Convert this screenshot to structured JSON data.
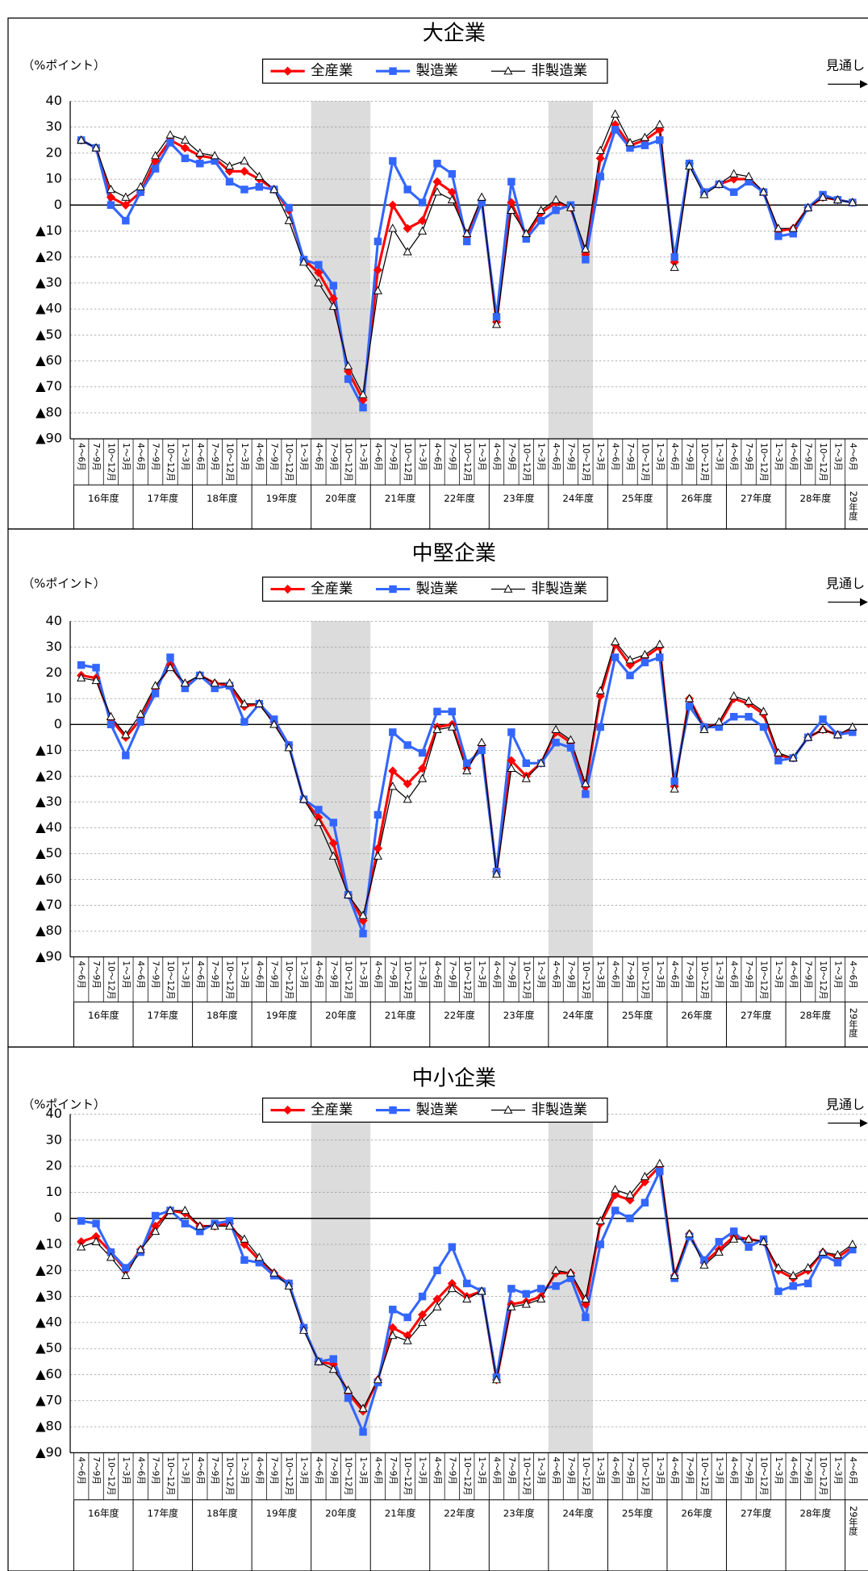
{
  "chart_data": [
    {
      "type": "line",
      "title": "大企業",
      "y_label": "（%ポイント）",
      "forecast_label": "見通し",
      "legend": "top center",
      "grid": true,
      "shaded_ranges": [
        [
          16,
          19
        ],
        [
          32,
          34
        ]
      ],
      "categories": [
        "4～6月",
        "7～9月",
        "10～12月",
        "1～3月",
        "4～6月",
        "7～9月",
        "10～12月",
        "1～3月",
        "4～6月",
        "7～9月",
        "10～12月",
        "1～3月",
        "4～6月",
        "7～9月",
        "10～12月",
        "1～3月",
        "4～6月",
        "7～9月",
        "10～12月",
        "1～3月",
        "4～6月",
        "7～9月",
        "10～12月",
        "1～3月",
        "4～6月",
        "7～9月",
        "10～12月",
        "1～3月",
        "4～6月",
        "7～9月",
        "10～12月",
        "1～3月",
        "4～6月",
        "7～9月",
        "10～12月",
        "1～3月",
        "4～6月",
        "7～9月",
        "10～12月",
        "1～3月",
        "4～6月",
        "7～9月",
        "10～12月",
        "1～3月",
        "4～6月",
        "7～9月",
        "10～12月",
        "1～3月",
        "4～6月",
        "7～9月",
        "10～12月",
        "1～3月",
        "4～6月"
      ],
      "year_groups": [
        "16年度",
        "17年度",
        "18年度",
        "19年度",
        "20年度",
        "21年度",
        "22年度",
        "23年度",
        "24年度",
        "25年度",
        "26年度",
        "27年度",
        "28年度",
        "29年度"
      ],
      "ylim": [
        -90,
        40
      ],
      "yticks": [
        40,
        30,
        20,
        10,
        0,
        {
          "value": -10,
          "label": "▲10"
        },
        {
          "value": -20,
          "label": "▲20"
        },
        {
          "value": -30,
          "label": "▲30"
        },
        {
          "value": -40,
          "label": "▲40"
        },
        {
          "value": -50,
          "label": "▲50"
        },
        {
          "value": -60,
          "label": "▲60"
        },
        {
          "value": -70,
          "label": "▲70"
        },
        {
          "value": -80,
          "label": "▲80"
        },
        {
          "value": -90,
          "label": "▲90"
        }
      ],
      "series": [
        {
          "name": "全産業",
          "color": "#ff0000",
          "marker": "diamond",
          "values": [
            25,
            22,
            3,
            0,
            5,
            17,
            25,
            22,
            19,
            18,
            13,
            13,
            10,
            6,
            -2,
            -21,
            -26,
            -36,
            -64,
            -75,
            -25,
            0,
            -9,
            -6,
            9,
            5,
            -12,
            2,
            -45,
            1,
            -12,
            -3,
            1,
            -1,
            -19,
            18,
            31,
            23,
            25,
            29,
            -22,
            16,
            5,
            8,
            10,
            10,
            5,
            -10,
            -9,
            -1,
            3,
            2,
            1
          ]
        },
        {
          "name": "製造業",
          "color": "#3366ff",
          "marker": "square",
          "values": [
            25,
            22,
            0,
            -6,
            5,
            14,
            24,
            18,
            16,
            17,
            9,
            6,
            7,
            6,
            -1,
            -21,
            -23,
            -31,
            -67,
            -78,
            -14,
            17,
            6,
            1,
            16,
            12,
            -14,
            1,
            -43,
            9,
            -13,
            -6,
            -2,
            0,
            -21,
            11,
            29,
            22,
            23,
            25,
            -20,
            16,
            5,
            8,
            5,
            9,
            5,
            -12,
            -11,
            -1,
            4,
            2,
            1
          ]
        },
        {
          "name": "非製造業",
          "color": "#000000",
          "marker": "triangle",
          "values": [
            25,
            22,
            6,
            3,
            7,
            19,
            27,
            25,
            20,
            19,
            15,
            17,
            11,
            6,
            -6,
            -22,
            -30,
            -39,
            -62,
            -73,
            -33,
            -9,
            -18,
            -10,
            5,
            2,
            -11,
            3,
            -46,
            -2,
            -11,
            -2,
            2,
            -1,
            -17,
            21,
            35,
            24,
            26,
            31,
            -24,
            15,
            4,
            8,
            12,
            11,
            5,
            -9,
            -9,
            -1,
            3,
            2,
            1
          ]
        }
      ]
    },
    {
      "type": "line",
      "title": "中堅企業",
      "y_label": "（%ポイント）",
      "forecast_label": "見通し",
      "legend": "top center",
      "grid": true,
      "shaded_ranges": [
        [
          16,
          19
        ],
        [
          32,
          34
        ]
      ],
      "categories": [
        "4～6月",
        "7～9月",
        "10～12月",
        "1～3月",
        "4～6月",
        "7～9月",
        "10～12月",
        "1～3月",
        "4～6月",
        "7～9月",
        "10～12月",
        "1～3月",
        "4～6月",
        "7～9月",
        "10～12月",
        "1～3月",
        "4～6月",
        "7～9月",
        "10～12月",
        "1～3月",
        "4～6月",
        "7～9月",
        "10～12月",
        "1～3月",
        "4～6月",
        "7～9月",
        "10～12月",
        "1～3月",
        "4～6月",
        "7～9月",
        "10～12月",
        "1～3月",
        "4～6月",
        "7～9月",
        "10～12月",
        "1～3月",
        "4～6月",
        "7～9月",
        "10～12月",
        "1～3月",
        "4～6月",
        "7～9月",
        "10～12月",
        "1～3月",
        "4～6月",
        "7～9月",
        "10～12月",
        "1～3月",
        "4～6月",
        "7～9月",
        "10～12月",
        "1～3月",
        "4～6月"
      ],
      "year_groups": [
        "16年度",
        "17年度",
        "18年度",
        "19年度",
        "20年度",
        "21年度",
        "22年度",
        "23年度",
        "24年度",
        "25年度",
        "26年度",
        "27年度",
        "28年度",
        "29年度"
      ],
      "ylim": [
        -90,
        40
      ],
      "yticks": [
        40,
        30,
        20,
        10,
        0,
        {
          "value": -10,
          "label": "▲10"
        },
        {
          "value": -20,
          "label": "▲20"
        },
        {
          "value": -30,
          "label": "▲30"
        },
        {
          "value": -40,
          "label": "▲40"
        },
        {
          "value": -50,
          "label": "▲50"
        },
        {
          "value": -60,
          "label": "▲60"
        },
        {
          "value": -70,
          "label": "▲70"
        },
        {
          "value": -80,
          "label": "▲80"
        },
        {
          "value": -90,
          "label": "▲90"
        }
      ],
      "series": [
        {
          "name": "全産業",
          "color": "#ff0000",
          "marker": "diamond",
          "values": [
            19,
            18,
            2,
            -5,
            2,
            14,
            23,
            15,
            19,
            16,
            15,
            7,
            8,
            1,
            -8,
            -29,
            -36,
            -46,
            -66,
            -76,
            -48,
            -18,
            -23,
            -17,
            -1,
            0,
            -17,
            -8,
            -57,
            -14,
            -20,
            -15,
            -3,
            -7,
            -24,
            11,
            31,
            23,
            26,
            30,
            -24,
            10,
            -1,
            0,
            10,
            8,
            4,
            -12,
            -13,
            -5,
            -2,
            -4,
            -2
          ]
        },
        {
          "name": "製造業",
          "color": "#3366ff",
          "marker": "square",
          "values": [
            23,
            22,
            0,
            -12,
            1,
            12,
            26,
            14,
            19,
            14,
            15,
            1,
            8,
            2,
            -8,
            -29,
            -33,
            -38,
            -66,
            -81,
            -35,
            -3,
            -8,
            -11,
            5,
            5,
            -15,
            -10,
            -57,
            -3,
            -15,
            -15,
            -7,
            -9,
            -27,
            -1,
            26,
            19,
            24,
            26,
            -22,
            7,
            -1,
            -1,
            3,
            3,
            -1,
            -14,
            -13,
            -5,
            2,
            -4,
            -3
          ]
        },
        {
          "name": "非製造業",
          "color": "#000000",
          "marker": "triangle",
          "values": [
            18,
            17,
            3,
            -4,
            4,
            15,
            22,
            16,
            19,
            16,
            16,
            8,
            8,
            0,
            -9,
            -29,
            -38,
            -51,
            -66,
            -74,
            -51,
            -24,
            -29,
            -21,
            -2,
            -1,
            -18,
            -7,
            -58,
            -17,
            -21,
            -15,
            -2,
            -6,
            -23,
            13,
            32,
            25,
            27,
            31,
            -25,
            10,
            -2,
            1,
            11,
            9,
            5,
            -11,
            -13,
            -5,
            -2,
            -4,
            -1
          ]
        }
      ]
    },
    {
      "type": "line",
      "title": "中小企業",
      "y_label": "（%ポイント）",
      "forecast_label": "見通し",
      "legend": "top center",
      "grid": true,
      "shaded_ranges": [
        [
          16,
          19
        ],
        [
          32,
          34
        ]
      ],
      "categories": [
        "4～6月",
        "7～9月",
        "10～12月",
        "1～3月",
        "4～6月",
        "7～9月",
        "10～12月",
        "1～3月",
        "4～6月",
        "7～9月",
        "10～12月",
        "1～3月",
        "4～6月",
        "7～9月",
        "10～12月",
        "1～3月",
        "4～6月",
        "7～9月",
        "10～12月",
        "1～3月",
        "4～6月",
        "7～9月",
        "10～12月",
        "1～3月",
        "4～6月",
        "7～9月",
        "10～12月",
        "1～3月",
        "4～6月",
        "7～9月",
        "10～12月",
        "1～3月",
        "4～6月",
        "7～9月",
        "10～12月",
        "1～3月",
        "4～6月",
        "7～9月",
        "10～12月",
        "1～3月",
        "4～6月",
        "7～9月",
        "10～12月",
        "1～3月",
        "4～6月",
        "7～9月",
        "10～12月",
        "1～3月",
        "4～6月",
        "7～9月",
        "10～12月",
        "1～3月",
        "4～6月"
      ],
      "year_groups": [
        "16年度",
        "17年度",
        "18年度",
        "19年度",
        "20年度",
        "21年度",
        "22年度",
        "23年度",
        "24年度",
        "25年度",
        "26年度",
        "27年度",
        "28年度",
        "29年度"
      ],
      "ylim": [
        -90,
        40
      ],
      "yticks": [
        40,
        30,
        20,
        10,
        0,
        {
          "value": -10,
          "label": "▲10"
        },
        {
          "value": -20,
          "label": "▲20"
        },
        {
          "value": -30,
          "label": "▲30"
        },
        {
          "value": -40,
          "label": "▲40"
        },
        {
          "value": -50,
          "label": "▲50"
        },
        {
          "value": -60,
          "label": "▲60"
        },
        {
          "value": -70,
          "label": "▲70"
        },
        {
          "value": -80,
          "label": "▲80"
        },
        {
          "value": -90,
          "label": "▲90"
        }
      ],
      "series": [
        {
          "name": "全産業",
          "color": "#ff0000",
          "marker": "diamond",
          "values": [
            -9,
            -7,
            -13,
            -20,
            -12,
            -3,
            3,
            2,
            -3,
            -3,
            -2,
            -10,
            -16,
            -21,
            -25,
            -42,
            -55,
            -56,
            -67,
            -74,
            -62,
            -42,
            -45,
            -37,
            -31,
            -25,
            -30,
            -28,
            -62,
            -33,
            -32,
            -30,
            -21,
            -21,
            -33,
            -2,
            9,
            7,
            14,
            20,
            -22,
            -6,
            -17,
            -12,
            -7,
            -8,
            -9,
            -20,
            -23,
            -20,
            -13,
            -15,
            -11
          ]
        },
        {
          "name": "製造業",
          "color": "#3366ff",
          "marker": "square",
          "values": [
            -1,
            -2,
            -13,
            -19,
            -13,
            1,
            3,
            -2,
            -5,
            -2,
            -1,
            -16,
            -17,
            -22,
            -25,
            -42,
            -55,
            -54,
            -69,
            -82,
            -63,
            -35,
            -38,
            -30,
            -20,
            -11,
            -25,
            -28,
            -61,
            -27,
            -29,
            -27,
            -26,
            -23,
            -38,
            -10,
            3,
            0,
            6,
            18,
            -23,
            -7,
            -16,
            -9,
            -5,
            -11,
            -8,
            -28,
            -26,
            -25,
            -14,
            -17,
            -12
          ]
        },
        {
          "name": "非製造業",
          "color": "#000000",
          "marker": "triangle",
          "values": [
            -11,
            -9,
            -15,
            -22,
            -12,
            -5,
            3,
            3,
            -3,
            -3,
            -3,
            -8,
            -15,
            -21,
            -26,
            -43,
            -55,
            -58,
            -66,
            -73,
            -62,
            -45,
            -47,
            -40,
            -34,
            -27,
            -31,
            -28,
            -62,
            -34,
            -33,
            -31,
            -20,
            -21,
            -31,
            -1,
            11,
            9,
            16,
            21,
            -22,
            -6,
            -18,
            -13,
            -8,
            -8,
            -9,
            -19,
            -22,
            -19,
            -13,
            -14,
            -10
          ]
        }
      ]
    }
  ]
}
